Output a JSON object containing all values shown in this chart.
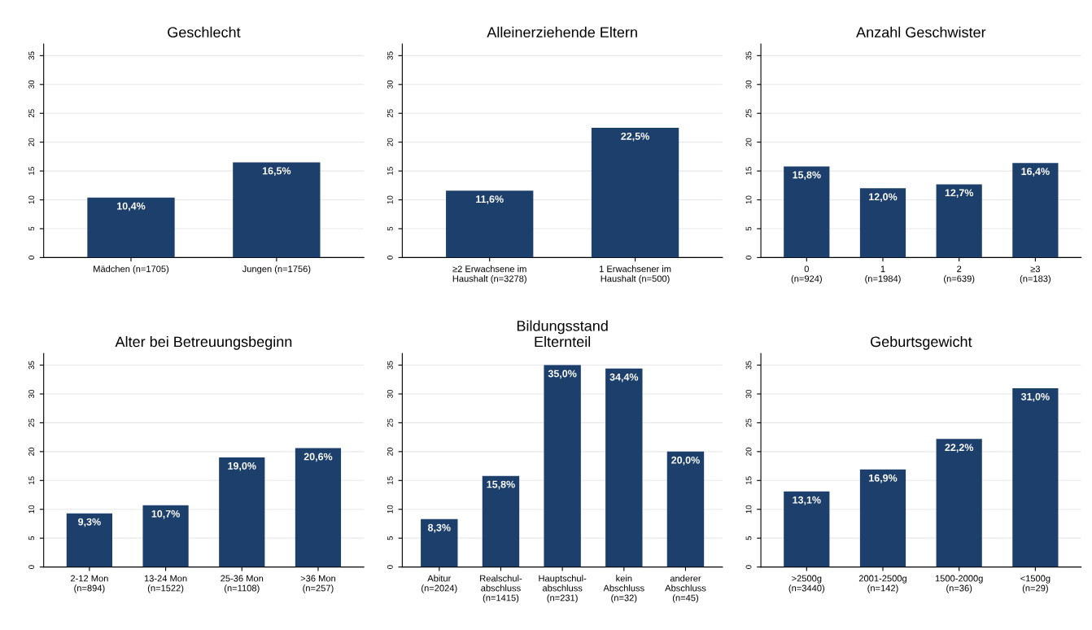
{
  "chart_data": [
    {
      "type": "bar",
      "title": "Geschlecht",
      "categories": [
        "Mädchen (n=1705)",
        "Jungen (n=1756)"
      ],
      "values": [
        10.4,
        16.5
      ],
      "value_labels": [
        "10,4%",
        "16,5%"
      ],
      "color": "#1c3f6b",
      "ylim": [
        0,
        37
      ],
      "yticks": [
        0,
        5,
        10,
        15,
        20,
        25,
        30,
        35
      ],
      "grid": "y"
    },
    {
      "type": "bar",
      "title": "Alleinerziehende Eltern",
      "categories": [
        "≥2 Erwachsene im\nHaushalt (n=3278)",
        "1 Erwachsener im\nHaushalt (n=500)"
      ],
      "values": [
        11.6,
        22.5
      ],
      "value_labels": [
        "11,6%",
        "22,5%"
      ],
      "color": "#1c3f6b",
      "ylim": [
        0,
        37
      ],
      "yticks": [
        0,
        5,
        10,
        15,
        20,
        25,
        30,
        35
      ],
      "grid": "y"
    },
    {
      "type": "bar",
      "title": "Anzahl Geschwister",
      "categories": [
        "0\n(n=924)",
        "1\n(n=1984)",
        "2\n(n=639)",
        "≥3\n(n=183)"
      ],
      "values": [
        15.8,
        12.0,
        12.7,
        16.4
      ],
      "value_labels": [
        "15,8%",
        "12,0%",
        "12,7%",
        "16,4%"
      ],
      "color": "#1c3f6b",
      "ylim": [
        0,
        37
      ],
      "yticks": [
        0,
        5,
        10,
        15,
        20,
        25,
        30,
        35
      ],
      "grid": "y"
    },
    {
      "type": "bar",
      "title": "Alter bei Betreuungsbeginn",
      "categories": [
        "2-12 Mon\n(n=894)",
        "13-24 Mon\n(n=1522)",
        "25-36 Mon\n(n=1108)",
        ">36 Mon\n(n=257)"
      ],
      "values": [
        9.3,
        10.7,
        19.0,
        20.6
      ],
      "value_labels": [
        "9,3%",
        "10,7%",
        "19,0%",
        "20,6%"
      ],
      "color": "#1c3f6b",
      "ylim": [
        0,
        37
      ],
      "yticks": [
        0,
        5,
        10,
        15,
        20,
        25,
        30,
        35
      ],
      "grid": "y"
    },
    {
      "type": "bar",
      "title": "Bildungsstand\nElternteil",
      "categories": [
        "Abitur\n(n=2024)",
        "Realschul-\nabschluss\n(n=1415)",
        "Hauptschul-\nabschluss\n(n=231)",
        "kein\nAbschluss\n(n=32)",
        "anderer\nAbschluss\n(n=45)"
      ],
      "values": [
        8.3,
        15.8,
        35.0,
        34.4,
        20.0
      ],
      "value_labels": [
        "8,3%",
        "15,8%",
        "35,0%",
        "34,4%",
        "20,0%"
      ],
      "color": "#1c3f6b",
      "ylim": [
        0,
        37
      ],
      "yticks": [
        0,
        5,
        10,
        15,
        20,
        25,
        30,
        35
      ],
      "grid": "y"
    },
    {
      "type": "bar",
      "title": "Geburtsgewicht",
      "categories": [
        ">2500g\n(n=3440)",
        "2001-2500g\n(n=142)",
        "1500-2000g\n(n=36)",
        "<1500g\n(n=29)"
      ],
      "values": [
        13.1,
        16.9,
        22.2,
        31.0
      ],
      "value_labels": [
        "13,1%",
        "16,9%",
        "22,2%",
        "31,0%"
      ],
      "color": "#1c3f6b",
      "ylim": [
        0,
        37
      ],
      "yticks": [
        0,
        5,
        10,
        15,
        20,
        25,
        30,
        35
      ],
      "grid": "y"
    }
  ]
}
